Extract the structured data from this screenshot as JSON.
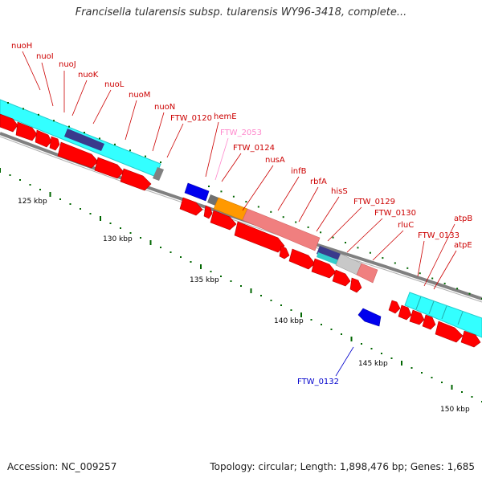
{
  "title": "Francisella tularensis subsp. tularensis WY96-3418, complete...",
  "footer": {
    "accession": "Accession: NC_009257",
    "summary": "Topology: circular; Length: 1,898,476 bp; Genes: 1,685"
  },
  "colors": {
    "cds_red": "#ff0000",
    "cds_dark_red": "#b30000",
    "cyan": "#33ffff",
    "navy": "#3a3a8c",
    "pink": "#f07f7f",
    "orange": "#ff9900",
    "silver": "#c8c8c8",
    "blue": "#0000ff",
    "gray": "#808080",
    "label_red": "#cc0000",
    "label_pink": "#ff88cc",
    "label_blue": "#0000cc",
    "tick_green": "#006600"
  },
  "scale_labels": [
    "125 kbp",
    "130 kbp",
    "135 kbp",
    "140 kbp",
    "145 kbp",
    "150 kbp"
  ],
  "gene_labels": [
    {
      "text": "nuoH",
      "color": "red"
    },
    {
      "text": "nuoI",
      "color": "red"
    },
    {
      "text": "nuoJ",
      "color": "red"
    },
    {
      "text": "nuoK",
      "color": "red"
    },
    {
      "text": "nuoL",
      "color": "red"
    },
    {
      "text": "nuoM",
      "color": "red"
    },
    {
      "text": "nuoN",
      "color": "red"
    },
    {
      "text": "FTW_0120",
      "color": "red"
    },
    {
      "text": "hemE",
      "color": "red"
    },
    {
      "text": "FTW_2053",
      "color": "pink"
    },
    {
      "text": "FTW_0124",
      "color": "red"
    },
    {
      "text": "nusA",
      "color": "red"
    },
    {
      "text": "infB",
      "color": "red"
    },
    {
      "text": "rbfA",
      "color": "red"
    },
    {
      "text": "hisS",
      "color": "red"
    },
    {
      "text": "FTW_0129",
      "color": "red"
    },
    {
      "text": "FTW_0130",
      "color": "red"
    },
    {
      "text": "rluC",
      "color": "red"
    },
    {
      "text": "FTW_0133",
      "color": "red"
    },
    {
      "text": "atpB",
      "color": "red"
    },
    {
      "text": "atpE",
      "color": "red"
    },
    {
      "text": "FTW_0132",
      "color": "blue"
    }
  ]
}
